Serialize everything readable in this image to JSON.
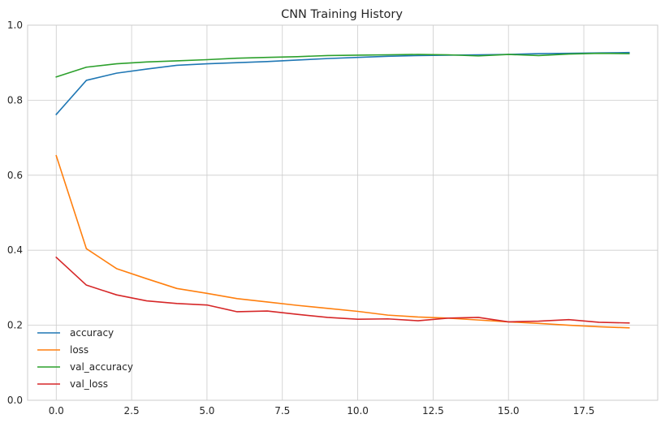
{
  "chart_data": {
    "type": "line",
    "title": "CNN Training History",
    "xlabel": "",
    "ylabel": "",
    "xlim": [
      -0.95,
      19.95
    ],
    "ylim": [
      0,
      1
    ],
    "xticks": [
      0,
      2.5,
      5,
      7.5,
      10,
      12.5,
      15,
      17.5
    ],
    "xtick_labels": [
      "0.0",
      "2.5",
      "5.0",
      "7.5",
      "10.0",
      "12.5",
      "15.0",
      "17.5"
    ],
    "yticks": [
      0,
      0.2,
      0.4,
      0.6,
      0.8,
      1.0
    ],
    "ytick_labels": [
      "0.0",
      "0.2",
      "0.4",
      "0.6",
      "0.8",
      "1.0"
    ],
    "grid": true,
    "legend_position": "lower-left",
    "x": [
      0,
      1,
      2,
      3,
      4,
      5,
      6,
      7,
      8,
      9,
      10,
      11,
      12,
      13,
      14,
      15,
      16,
      17,
      18,
      19
    ],
    "series": [
      {
        "name": "accuracy",
        "color": "#1f77b4",
        "values": [
          0.762,
          0.853,
          0.872,
          0.883,
          0.893,
          0.897,
          0.9,
          0.903,
          0.907,
          0.911,
          0.914,
          0.917,
          0.919,
          0.92,
          0.921,
          0.922,
          0.924,
          0.925,
          0.926,
          0.927
        ]
      },
      {
        "name": "loss",
        "color": "#ff7f0e",
        "values": [
          0.652,
          0.404,
          0.351,
          0.324,
          0.298,
          0.285,
          0.271,
          0.262,
          0.253,
          0.245,
          0.237,
          0.227,
          0.222,
          0.219,
          0.214,
          0.209,
          0.205,
          0.2,
          0.196,
          0.193
        ]
      },
      {
        "name": "val_accuracy",
        "color": "#2ca02c",
        "values": [
          0.862,
          0.888,
          0.897,
          0.902,
          0.905,
          0.908,
          0.912,
          0.914,
          0.916,
          0.919,
          0.92,
          0.921,
          0.922,
          0.921,
          0.918,
          0.922,
          0.919,
          0.923,
          0.925,
          0.924
        ]
      },
      {
        "name": "val_loss",
        "color": "#d62728",
        "values": [
          0.381,
          0.307,
          0.281,
          0.265,
          0.258,
          0.254,
          0.236,
          0.238,
          0.229,
          0.221,
          0.216,
          0.217,
          0.212,
          0.219,
          0.221,
          0.209,
          0.211,
          0.215,
          0.208,
          0.206
        ]
      }
    ]
  }
}
